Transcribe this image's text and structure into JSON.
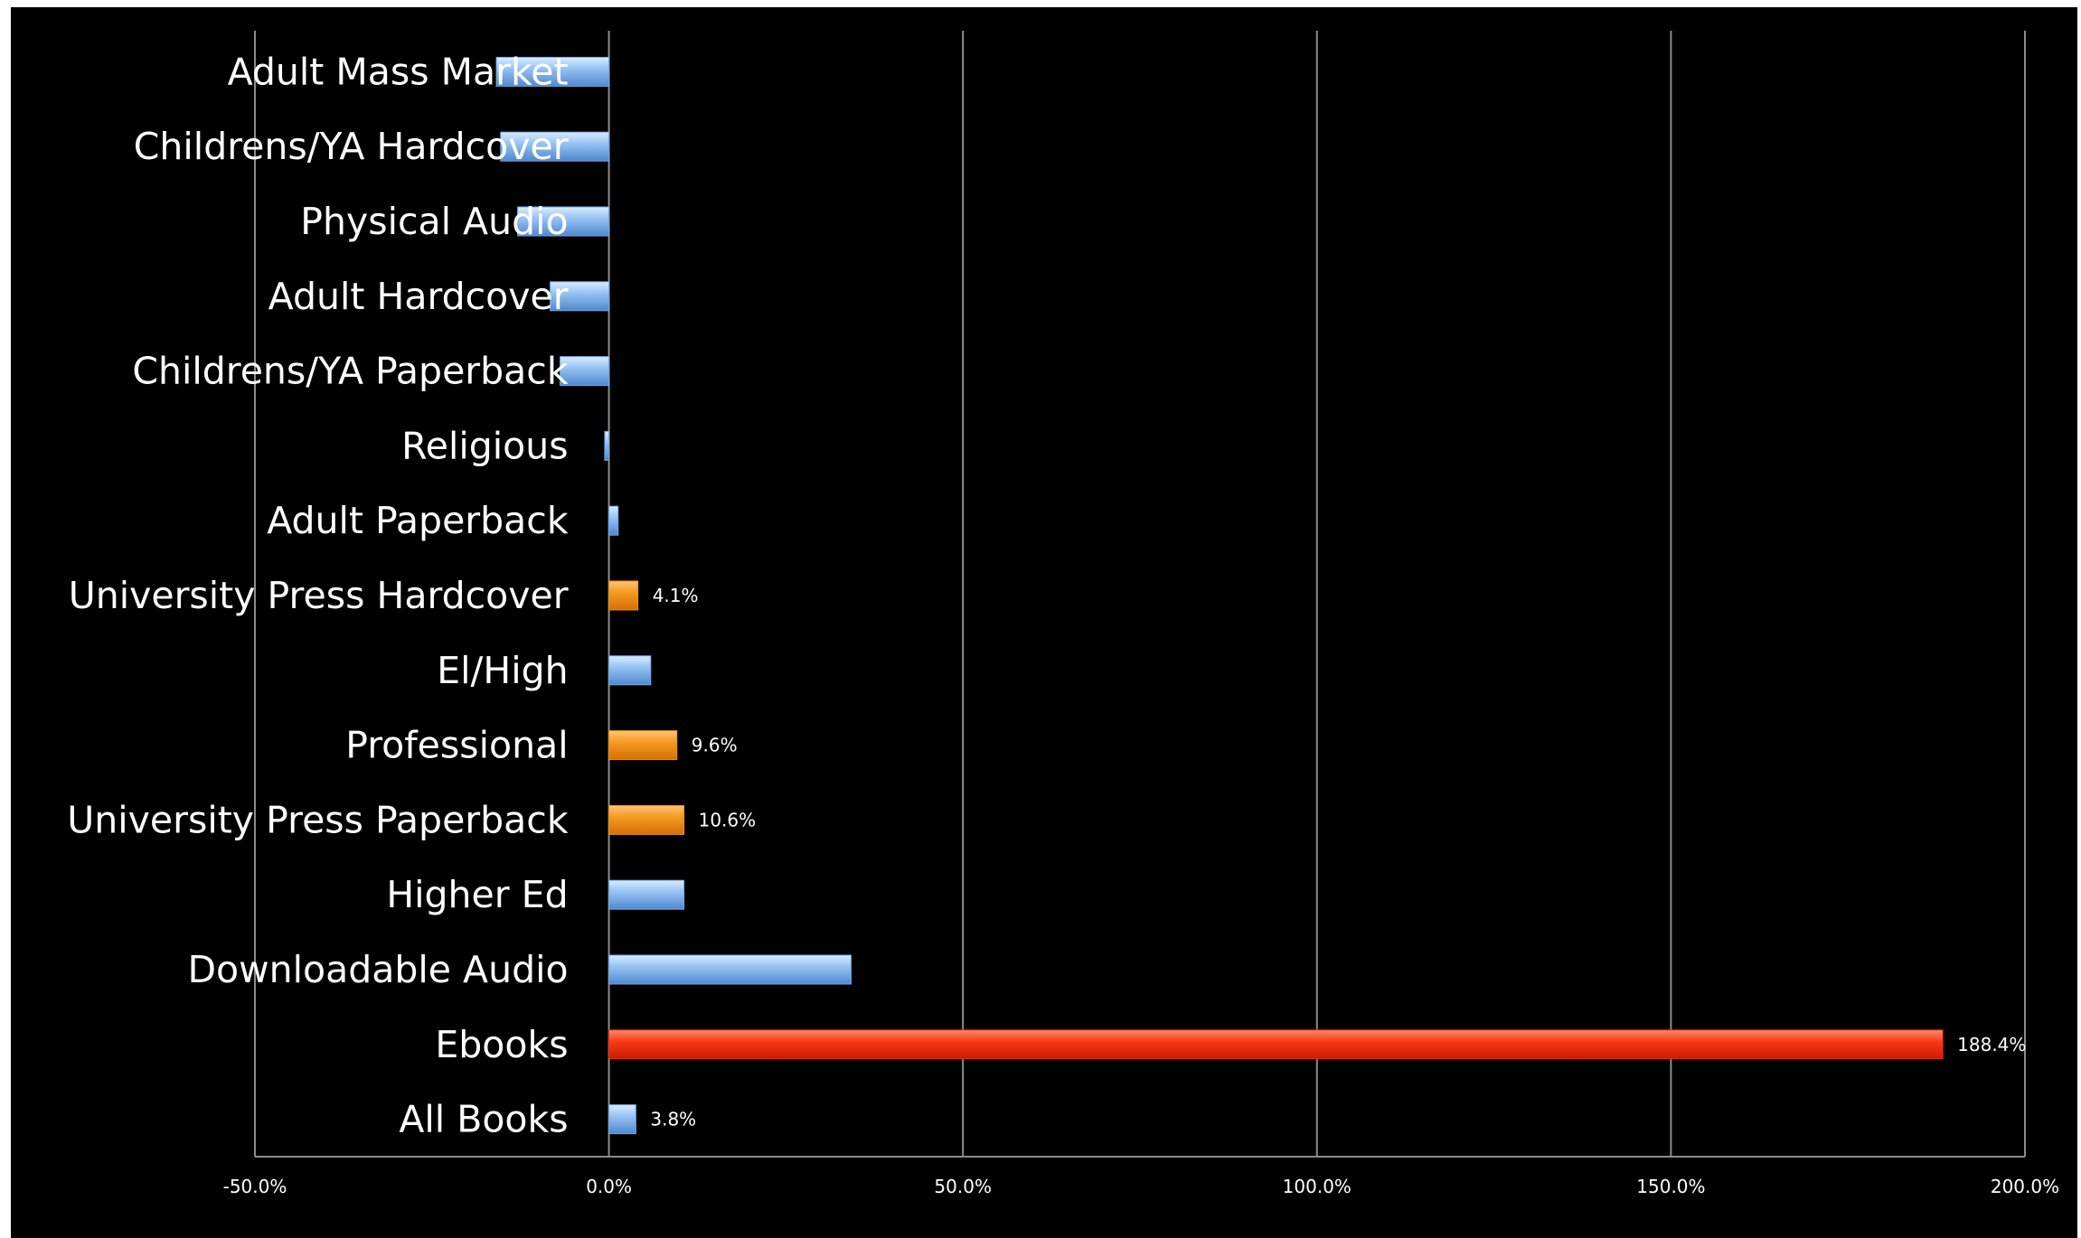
{
  "chart_data": {
    "type": "bar",
    "orientation": "horizontal",
    "categories": [
      "Adult Mass Market",
      "Childrens/YA Hardcover",
      "Physical Audio",
      "Adult Hardcover",
      "Childrens/YA Paperback",
      "Religious",
      "Adult Paperback",
      "University Press Hardcover",
      "El/High",
      "Professional",
      "University Press Paperback",
      "Higher Ed",
      "Downloadable Audio",
      "Ebooks",
      "All Books"
    ],
    "values": [
      -15.9,
      -15.3,
      -12.9,
      -8.3,
      -6.9,
      -0.6,
      1.3,
      4.1,
      5.9,
      9.6,
      10.6,
      10.6,
      34.2,
      188.4,
      3.8
    ],
    "bar_colors": [
      "#6fa8e6",
      "#6fa8e6",
      "#6fa8e6",
      "#6fa8e6",
      "#6fa8e6",
      "#6fa8e6",
      "#6fa8e6",
      "#f08a12",
      "#6fa8e6",
      "#f08a12",
      "#f08a12",
      "#6fa8e6",
      "#6fa8e6",
      "#f42a0f",
      "#6fa8e6"
    ],
    "data_labels": [
      "",
      "",
      "",
      "",
      "",
      "",
      "",
      "4.1%",
      "",
      "9.6%",
      "10.6%",
      "",
      "",
      "188.4%",
      "3.8%"
    ],
    "xlim": [
      -50,
      200
    ],
    "xticks": [
      -50,
      0,
      50,
      100,
      150,
      200
    ],
    "xtick_labels": [
      "-50.0%",
      "0.0%",
      "50.0%",
      "100.0%",
      "150.0%",
      "200.0%"
    ],
    "grid": "vertical",
    "legend": "none",
    "background": "#000000",
    "text_color": "#ffffff",
    "grid_color": "#8c8c8c"
  }
}
